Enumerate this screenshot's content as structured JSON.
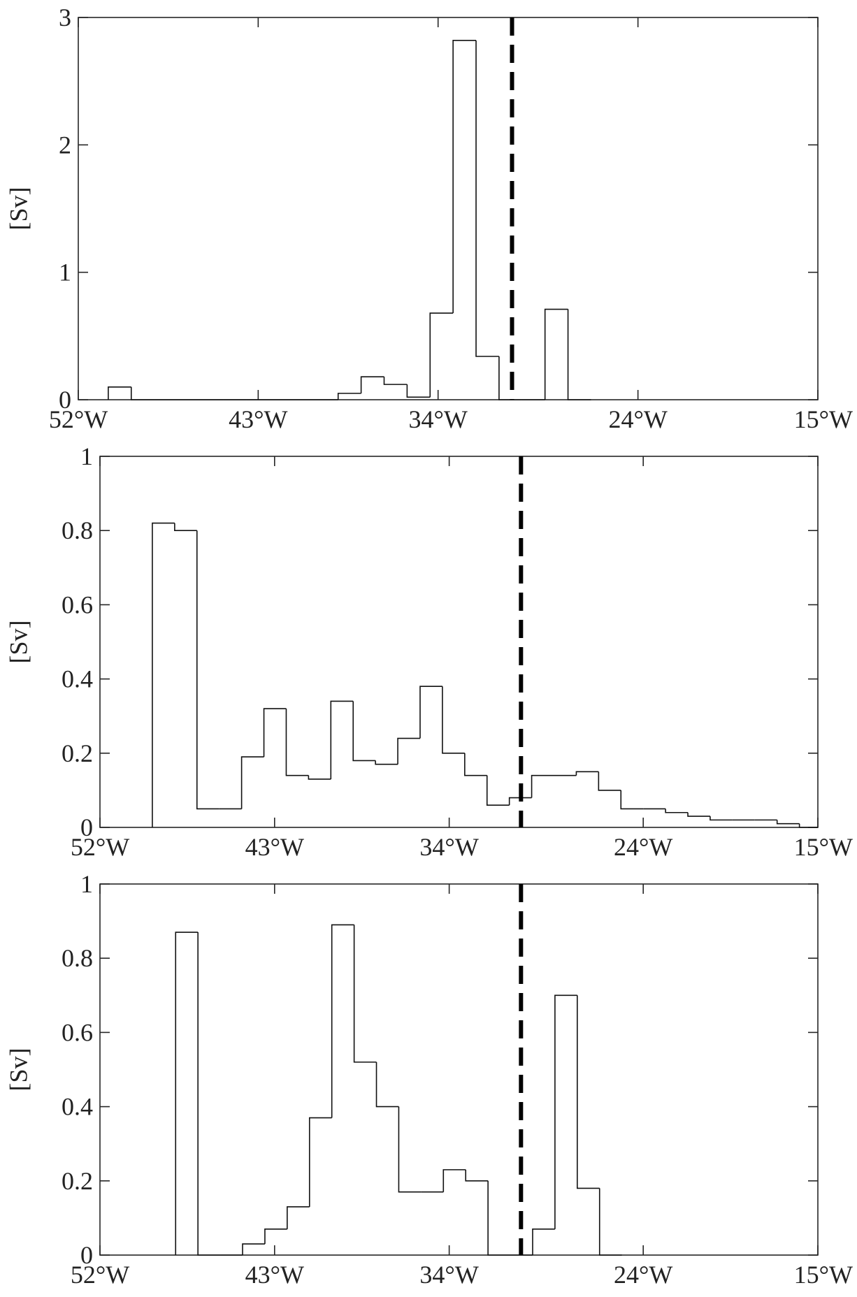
{
  "chart_data": [
    {
      "type": "bar",
      "style": "stairs-outline",
      "xlim": [
        52,
        15
      ],
      "ylim": [
        0,
        3
      ],
      "ylabel": "[Sv]",
      "yticks": [
        0,
        1,
        2,
        3
      ],
      "ytick_labels": [
        "0",
        "1",
        "2",
        "3"
      ],
      "xticks": [
        52,
        43,
        34,
        24,
        15
      ],
      "xtick_labels": [
        "52°W",
        "43°W",
        "34°W",
        "24°W",
        "15°W"
      ],
      "reference_line_lon": 30.3,
      "bins": {
        "edges": [
          50.5,
          49.35,
          48.2,
          47.05,
          45.9,
          44.75,
          43.6,
          42.45,
          41.3,
          40.15,
          39.0,
          37.85,
          36.7,
          35.55,
          34.4,
          33.25,
          32.1,
          30.95,
          29.8,
          28.65,
          27.5,
          26.35
        ],
        "values": [
          0.1,
          0.0,
          0.0,
          0.0,
          0.0,
          0.0,
          0.0,
          0.0,
          0.0,
          0.0,
          0.05,
          0.18,
          0.12,
          0.02,
          0.68,
          2.82,
          0.34,
          0.0,
          0.0,
          0.71,
          0.0
        ]
      }
    },
    {
      "type": "bar",
      "style": "stairs-outline",
      "xlim": [
        52,
        15
      ],
      "ylim": [
        0,
        1
      ],
      "ylabel": "[Sv]",
      "yticks": [
        0,
        0.2,
        0.4,
        0.6,
        0.8,
        1
      ],
      "ytick_labels": [
        "0",
        "0.2",
        "0.4",
        "0.6",
        "0.8",
        "1"
      ],
      "xticks": [
        52,
        43,
        34,
        24,
        15
      ],
      "xtick_labels": [
        "52°W",
        "43°W",
        "34°W",
        "24°W",
        "15°W"
      ],
      "reference_line_lon": 30.3,
      "bins": {
        "edges": [
          49.3,
          48.15,
          47.0,
          45.85,
          44.7,
          43.55,
          42.4,
          41.25,
          40.1,
          38.95,
          37.8,
          36.65,
          35.5,
          34.35,
          33.2,
          32.05,
          30.9,
          29.75,
          28.6,
          27.45,
          26.3,
          25.15,
          24.0,
          22.85,
          21.7,
          20.55,
          19.4,
          18.25,
          17.1,
          15.95,
          15.0
        ],
        "values": [
          0.82,
          0.8,
          0.05,
          0.05,
          0.19,
          0.32,
          0.14,
          0.13,
          0.34,
          0.18,
          0.17,
          0.24,
          0.38,
          0.2,
          0.14,
          0.06,
          0.08,
          0.14,
          0.14,
          0.15,
          0.1,
          0.05,
          0.05,
          0.04,
          0.03,
          0.02,
          0.02,
          0.02,
          0.01,
          0.0
        ]
      }
    },
    {
      "type": "bar",
      "style": "stairs-outline",
      "xlim": [
        52,
        15
      ],
      "ylim": [
        0,
        1
      ],
      "ylabel": "[Sv]",
      "yticks": [
        0,
        0.2,
        0.4,
        0.6,
        0.8,
        1
      ],
      "ytick_labels": [
        "0",
        "0.2",
        "0.4",
        "0.6",
        "0.8",
        "1"
      ],
      "xticks": [
        52,
        43,
        34,
        24,
        15
      ],
      "xtick_labels": [
        "52°W",
        "43°W",
        "34°W",
        "24°W",
        "15°W"
      ],
      "reference_line_lon": 30.3,
      "bins": {
        "edges": [
          48.1,
          46.95,
          45.8,
          44.65,
          43.5,
          42.35,
          41.2,
          40.05,
          38.9,
          37.75,
          36.6,
          35.45,
          34.3,
          33.15,
          32.0,
          30.85,
          29.7,
          28.55,
          27.4,
          26.25,
          25.1
        ],
        "values": [
          0.87,
          0.0,
          0.0,
          0.03,
          0.07,
          0.13,
          0.37,
          0.89,
          0.52,
          0.4,
          0.17,
          0.17,
          0.23,
          0.2,
          0.0,
          0.0,
          0.07,
          0.7,
          0.18,
          0.0
        ]
      }
    }
  ]
}
